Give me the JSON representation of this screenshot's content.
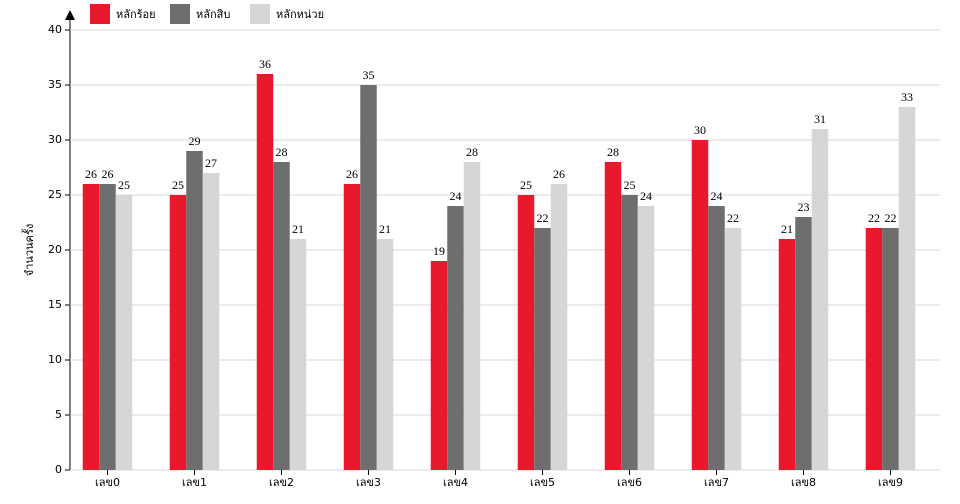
{
  "chart_data": {
    "type": "bar",
    "y_label": "จำนวนครั้ง",
    "categories": [
      "เลข0",
      "เลข1",
      "เลข2",
      "เลข3",
      "เลข4",
      "เลข5",
      "เลข6",
      "เลข7",
      "เลข8",
      "เลข9"
    ],
    "series": [
      {
        "name": "หลักร้อย",
        "color": "#e8192c",
        "values": [
          26,
          25,
          36,
          26,
          19,
          25,
          28,
          30,
          21,
          22
        ]
      },
      {
        "name": "หลักสิบ",
        "color": "#6e6e6e",
        "values": [
          26,
          29,
          28,
          35,
          24,
          22,
          25,
          24,
          23,
          22
        ]
      },
      {
        "name": "หลักหน่วย",
        "color": "#d6d6d6",
        "values": [
          25,
          27,
          21,
          21,
          28,
          26,
          24,
          22,
          31,
          33
        ]
      }
    ],
    "ylim": [
      0,
      40
    ],
    "yticks": [
      0,
      5,
      10,
      15,
      20,
      25,
      30,
      35,
      40
    ],
    "grid": true
  }
}
